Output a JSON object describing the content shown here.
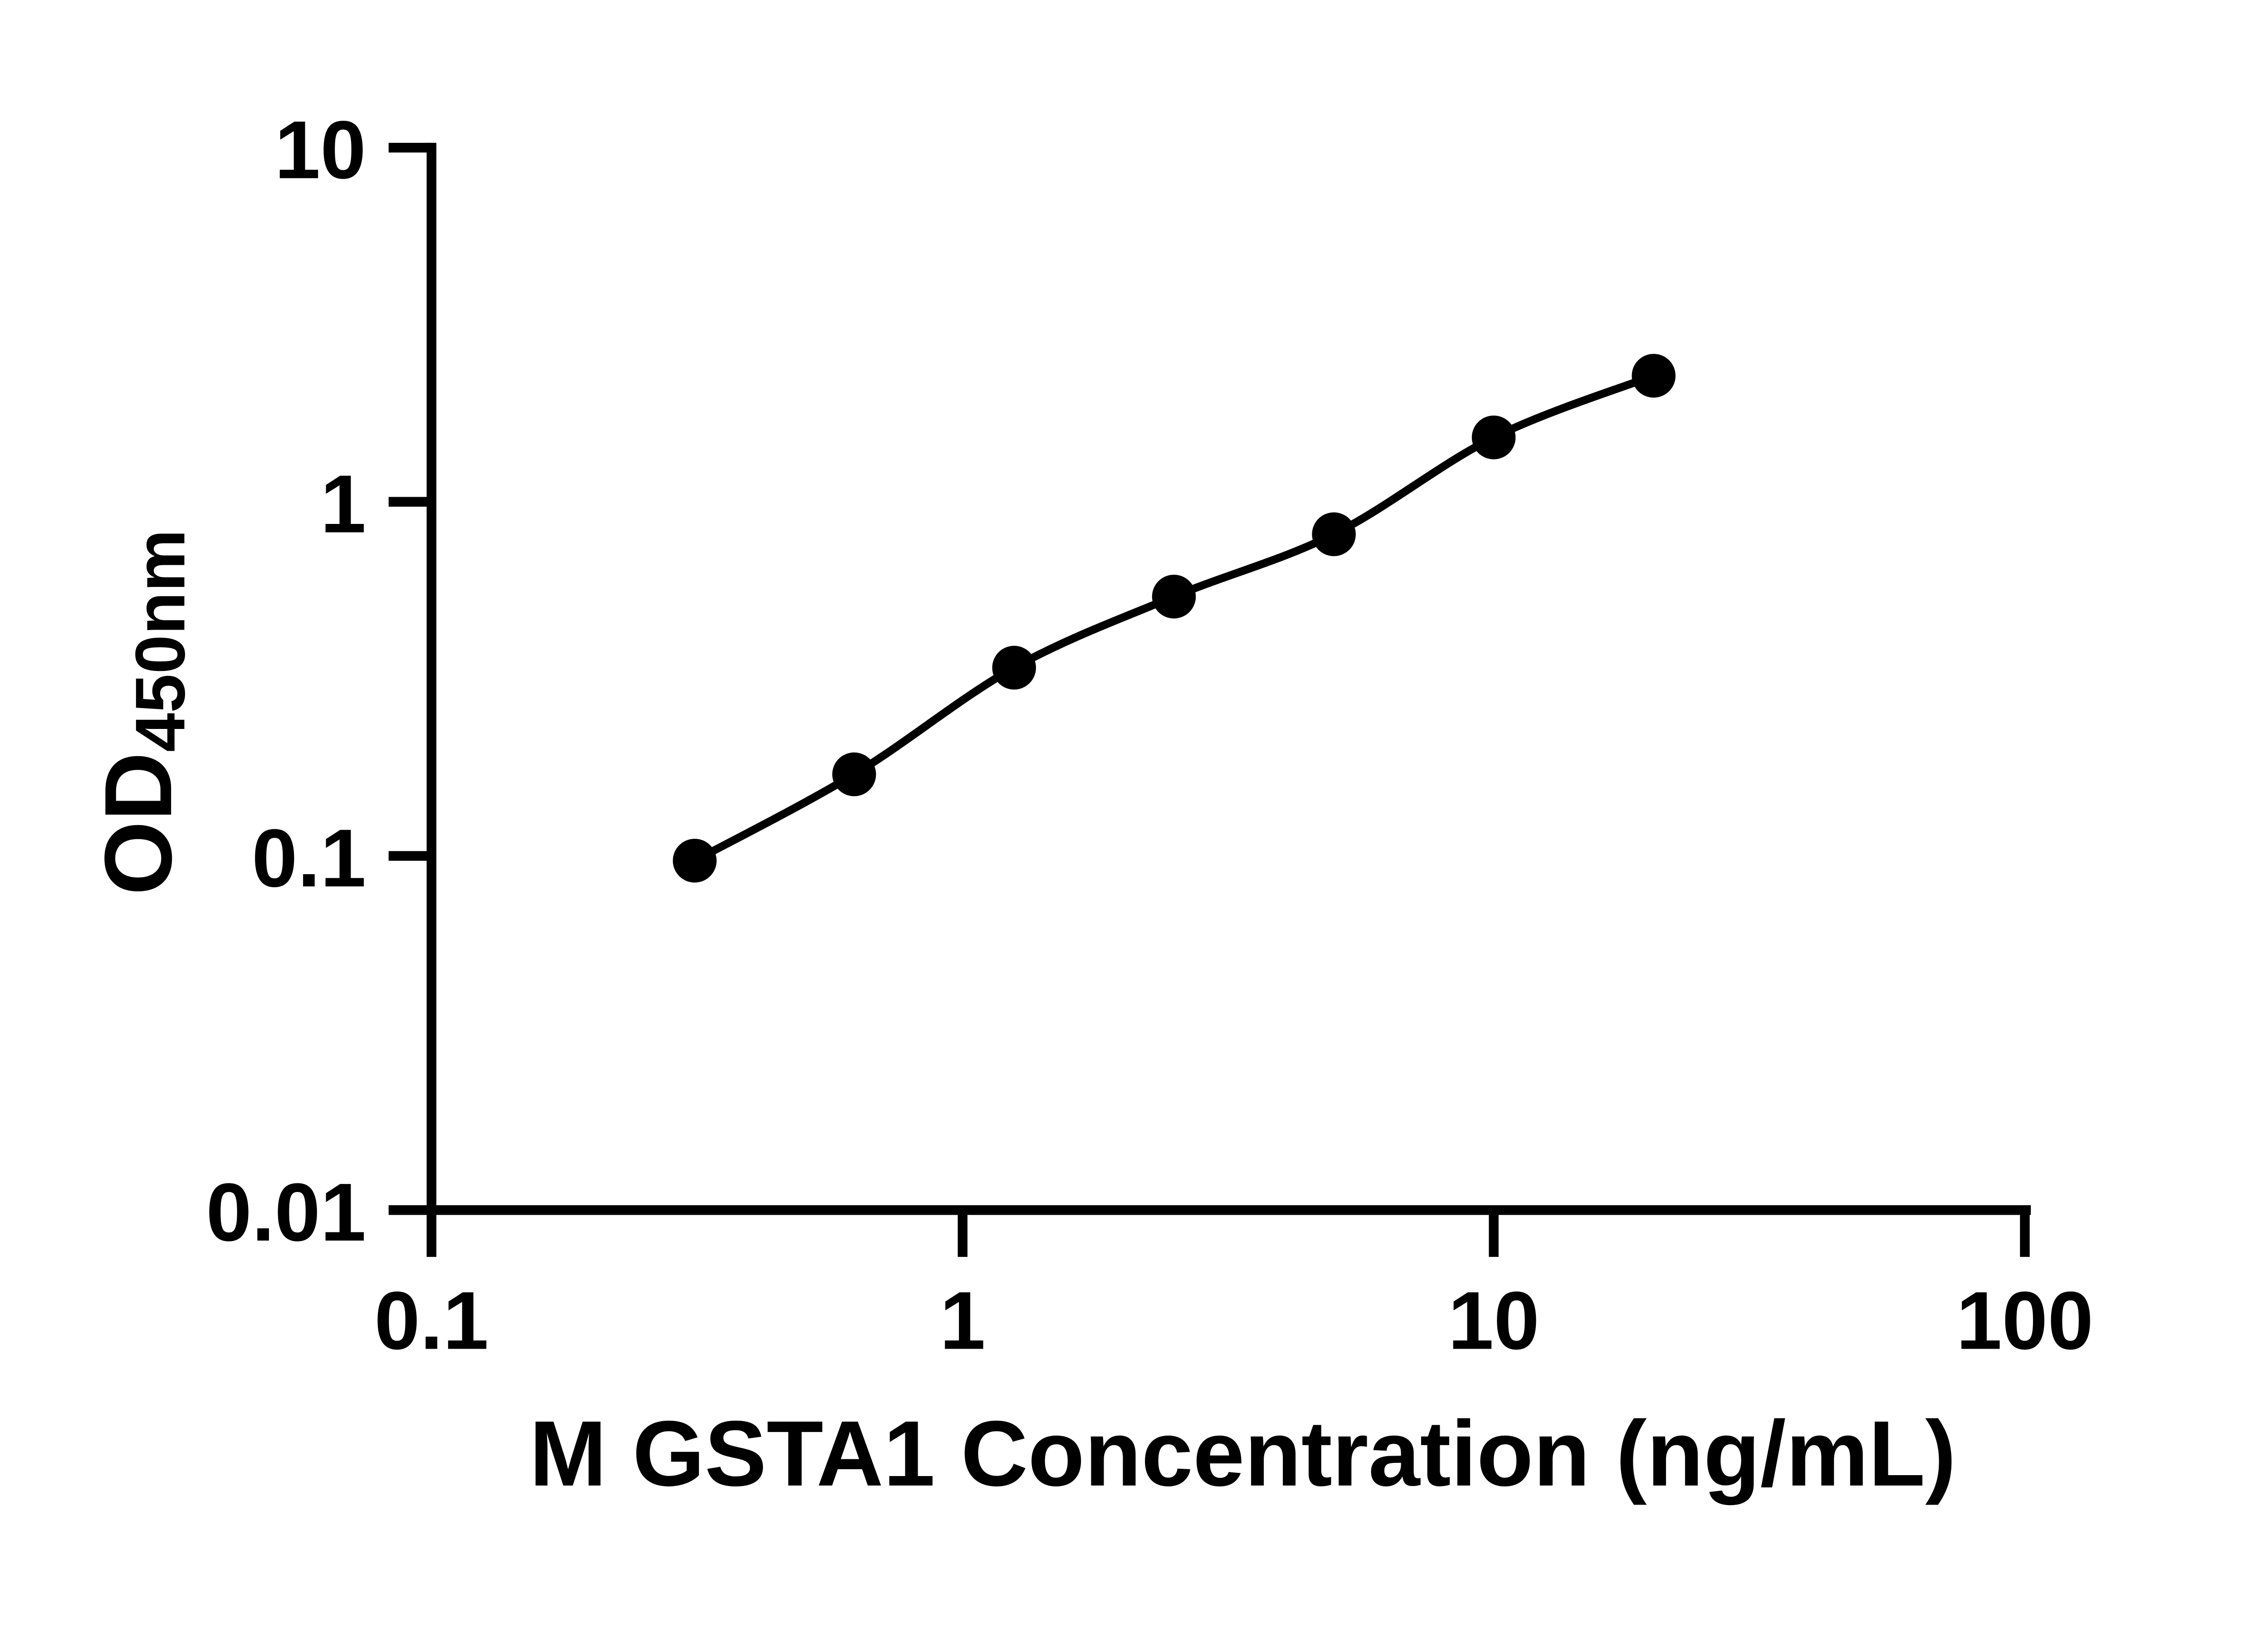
{
  "figure": {
    "background": "#ffffff",
    "ink_color": "#000000"
  },
  "chart_data": {
    "type": "scatter",
    "title": "",
    "xlabel": "M GSTA1 Concentration (ng/mL)",
    "ylabel": {
      "main": "OD",
      "subscript": "450nm"
    },
    "x_scale": "log10",
    "y_scale": "log10",
    "xlim": [
      0.1,
      100
    ],
    "ylim": [
      0.01,
      10
    ],
    "x_ticks": [
      0.1,
      1,
      10,
      100
    ],
    "x_tick_labels": [
      "0.1",
      "1",
      "10",
      "100"
    ],
    "y_ticks": [
      10,
      1,
      0.1,
      0.01
    ],
    "y_tick_labels": [
      "10",
      "1",
      "0.1",
      "0.01"
    ],
    "grid": false,
    "legend": null,
    "series": [
      {
        "marker": "filled-circle",
        "line": "smooth-fit",
        "color": "#000000",
        "points": [
          {
            "x": 0.313,
            "y": 0.097
          },
          {
            "x": 0.625,
            "y": 0.17
          },
          {
            "x": 1.25,
            "y": 0.34
          },
          {
            "x": 2.5,
            "y": 0.54
          },
          {
            "x": 5,
            "y": 0.81
          },
          {
            "x": 10,
            "y": 1.52
          },
          {
            "x": 20,
            "y": 2.27
          }
        ]
      }
    ]
  }
}
